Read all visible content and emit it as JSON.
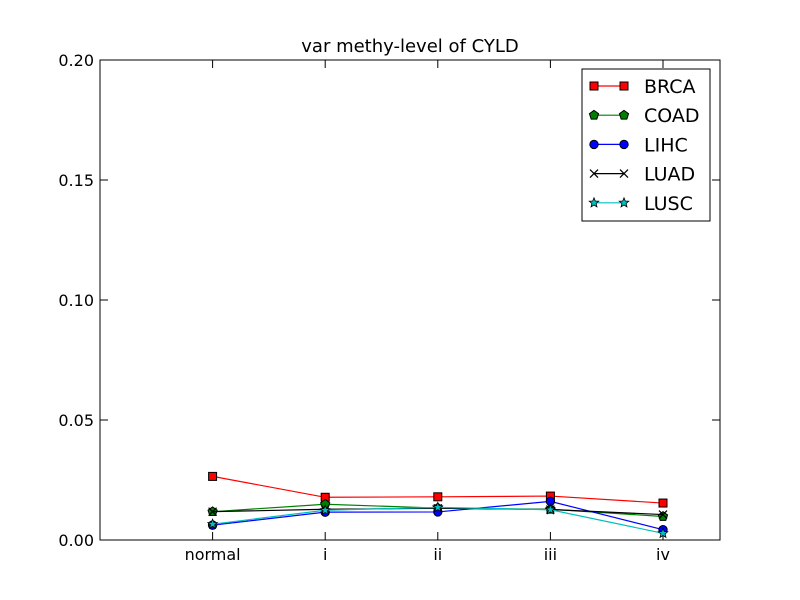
{
  "chart_data": {
    "type": "line",
    "title": "var methy-level of CYLD",
    "xlabel": "",
    "ylabel": "",
    "categories": [
      "normal",
      "i",
      "ii",
      "iii",
      "iv"
    ],
    "ylim": [
      0.0,
      0.2
    ],
    "yticks": [
      "0.00",
      "0.05",
      "0.10",
      "0.15",
      "0.20"
    ],
    "grid": false,
    "legend_position": "top-right",
    "series": [
      {
        "name": "BRCA",
        "color": "#ff0000",
        "marker": "square",
        "values": [
          0.0265,
          0.0178,
          0.018,
          0.0183,
          0.0154
        ]
      },
      {
        "name": "COAD",
        "color": "#008000",
        "marker": "pentagon",
        "values": [
          0.0118,
          0.0149,
          0.0133,
          0.0128,
          0.0098
        ]
      },
      {
        "name": "LIHC",
        "color": "#0000ff",
        "marker": "circle",
        "values": [
          0.0062,
          0.0116,
          0.0117,
          0.0161,
          0.0043
        ]
      },
      {
        "name": "LUAD",
        "color": "#000000",
        "marker": "x",
        "values": [
          0.0118,
          0.0128,
          0.0132,
          0.0127,
          0.0106
        ]
      },
      {
        "name": "LUSC",
        "color": "#00bfbf",
        "marker": "star",
        "values": [
          0.0066,
          0.0124,
          0.0136,
          0.0126,
          0.0028
        ]
      }
    ]
  }
}
